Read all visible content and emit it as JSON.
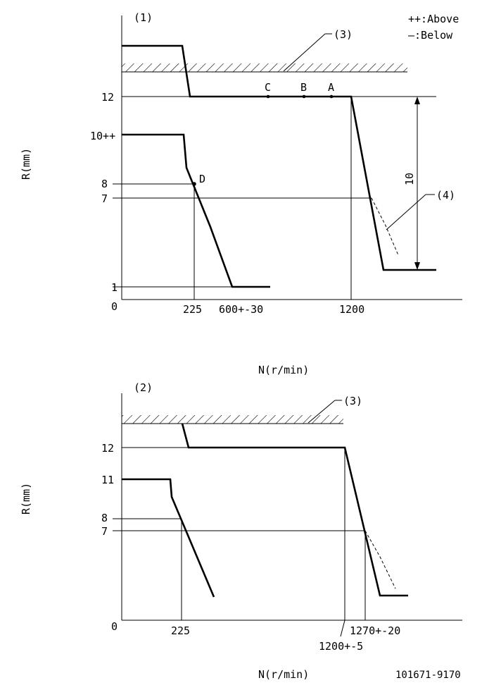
{
  "legend": {
    "above": "++:Above",
    "below": "—:Below"
  },
  "graph1": {
    "id_label": "(1)",
    "callout_3": "(3)",
    "callout_4": "(4)",
    "y_axis_label": "R(mm)",
    "x_axis_label": "N(r/min)",
    "y_ticks": [
      "12",
      "10++",
      "8",
      "7",
      "1",
      "0"
    ],
    "x_ticks": [
      "225",
      "600+-30",
      "1200"
    ],
    "points": [
      "C",
      "B",
      "A",
      "D"
    ],
    "dimension_label": "10"
  },
  "graph2": {
    "id_label": "(2)",
    "callout_3": "(3)",
    "y_axis_label": "R(mm)",
    "x_axis_label": "N(r/min)",
    "y_ticks": [
      "12",
      "11",
      "8",
      "7",
      "0"
    ],
    "x_ticks": [
      "225",
      "1270+-20",
      "1200+-5"
    ]
  },
  "footer": {
    "drawing_number": "101671-9170"
  }
}
